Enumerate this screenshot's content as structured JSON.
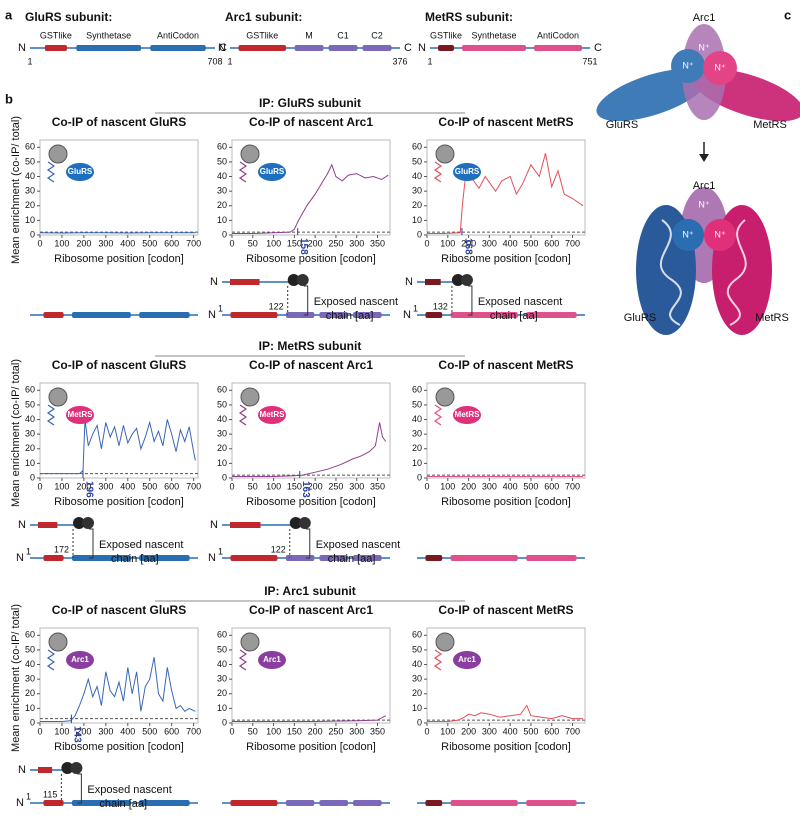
{
  "panel_a": {
    "label": "a",
    "proteins": [
      {
        "name": "GluRS subunit:",
        "n": "N",
        "c": "C",
        "start": "1",
        "end": "708",
        "domains": [
          {
            "label": "GSTlike",
            "color": "#c0282e"
          },
          {
            "label": "Synthetase",
            "color": "#2a6db0"
          },
          {
            "label": "AntiCodon",
            "color": "#2a6db0"
          }
        ]
      },
      {
        "name": "Arc1 subunit:",
        "n": "N",
        "c": "C",
        "start": "1",
        "end": "376",
        "domains": [
          {
            "label": "GSTlike",
            "color": "#c0282e"
          },
          {
            "label": "M",
            "color": "#7b68b8"
          },
          {
            "label": "C1",
            "color": "#7b68b8"
          },
          {
            "label": "C2",
            "color": "#7b68b8"
          }
        ]
      },
      {
        "name": "MetRS subunit:",
        "n": "N",
        "c": "C",
        "start": "1",
        "end": "751",
        "domains": [
          {
            "label": "GSTlike",
            "color": "#7a1a20"
          },
          {
            "label": "Synthetase",
            "color": "#e0508a"
          },
          {
            "label": "AntiCodon",
            "color": "#e0508a"
          }
        ]
      }
    ]
  },
  "panel_b": {
    "label": "b",
    "rows": [
      "IP: GluRS subunit",
      "IP: MetRS  subunit",
      "IP: Arc1 subunit"
    ]
  },
  "panel_c": {
    "label": "c",
    "arc1": "Arc1",
    "glurs": "GluRS",
    "metrs": "MetRS",
    "n": "N⁺"
  },
  "chart_data": [
    {
      "type": "line",
      "title": "Co-IP of nascent GluRS",
      "xlabel": "Ribosome position [codon]",
      "ylabel": "Mean enrichment (co-IP/ total)",
      "bait": "GluRS",
      "bait_color": "#1f6fbf",
      "color": "#3a66b7",
      "reference_line": 2,
      "x": [
        0,
        100,
        200,
        300,
        400,
        500,
        600,
        708
      ],
      "values": [
        1.5,
        1.4,
        1.6,
        1.5,
        1.4,
        1.5,
        1.6,
        1.5
      ],
      "xlim": [
        0,
        720
      ],
      "xticks": [
        0,
        100,
        200,
        300,
        400,
        500,
        600,
        700
      ],
      "ylim": [
        0,
        65
      ],
      "yticks": [
        0,
        10,
        20,
        30,
        40,
        50,
        60
      ]
    },
    {
      "type": "line",
      "title": "Co-IP of nascent Arc1",
      "xlabel": "Ribosome position [codon]",
      "bait": "GluRS",
      "bait_color": "#1f6fbf",
      "color": "#8e3f8e",
      "reference_line": 2,
      "x": [
        0,
        50,
        100,
        140,
        150,
        160,
        180,
        200,
        215,
        230,
        240,
        250,
        265,
        280,
        300,
        320,
        340,
        360,
        376
      ],
      "values": [
        1,
        1,
        1.5,
        2,
        4,
        10,
        20,
        28,
        35,
        42,
        48,
        40,
        37,
        41,
        42,
        39,
        40,
        38,
        41
      ],
      "xlim": [
        0,
        380
      ],
      "xticks": [
        0,
        50,
        100,
        150,
        200,
        250,
        300,
        350
      ],
      "ylim": [
        0,
        65
      ],
      "yticks": [
        0,
        10,
        20,
        30,
        40,
        50,
        60
      ],
      "onset": {
        "value": 158,
        "label": "158"
      },
      "schematic": {
        "n": "N",
        "start": "1",
        "position": "122",
        "caption": [
          "Exposed nascent",
          "chain [aa]"
        ]
      }
    },
    {
      "type": "line",
      "title": "Co-IP of nascent MetRS",
      "xlabel": "Ribosome position [codon]",
      "bait": "GluRS",
      "bait_color": "#1f6fbf",
      "color": "#e0505a",
      "reference_line": 2,
      "x": [
        0,
        80,
        160,
        170,
        185,
        200,
        220,
        250,
        280,
        300,
        330,
        360,
        400,
        430,
        460,
        500,
        540,
        570,
        600,
        630,
        660,
        700,
        751
      ],
      "values": [
        1,
        1,
        1.5,
        20,
        40,
        48,
        38,
        32,
        40,
        36,
        30,
        37,
        40,
        28,
        35,
        48,
        40,
        56,
        33,
        44,
        28,
        25,
        20
      ],
      "xlim": [
        0,
        760
      ],
      "xticks": [
        0,
        100,
        200,
        300,
        400,
        500,
        600,
        700
      ],
      "ylim": [
        0,
        65
      ],
      "yticks": [
        0,
        10,
        20,
        30,
        40,
        50,
        60
      ],
      "onset": {
        "value": 168,
        "label": "168"
      },
      "schematic": {
        "n": "N",
        "start": "1",
        "position": "132",
        "caption": [
          "Exposed nascent",
          "chain [aa]"
        ]
      }
    },
    {
      "type": "line",
      "title": "Co-IP of nascent GluRS",
      "xlabel": "Ribosome position [codon]",
      "ylabel": "Mean enrichment (co-IP/ total)",
      "bait": "MetRS",
      "bait_color": "#e0307a",
      "color": "#3a66b7",
      "reference_line": 3,
      "x": [
        0,
        100,
        180,
        196,
        205,
        220,
        240,
        260,
        280,
        300,
        320,
        340,
        360,
        380,
        400,
        420,
        440,
        460,
        480,
        500,
        520,
        540,
        560,
        580,
        600,
        620,
        640,
        660,
        680,
        700,
        708
      ],
      "values": [
        3,
        3,
        3,
        5,
        40,
        22,
        30,
        36,
        20,
        38,
        28,
        35,
        22,
        36,
        24,
        30,
        34,
        20,
        28,
        38,
        25,
        32,
        22,
        40,
        30,
        18,
        33,
        25,
        35,
        18,
        12
      ],
      "xlim": [
        0,
        720
      ],
      "xticks": [
        0,
        100,
        200,
        300,
        400,
        500,
        600,
        700
      ],
      "ylim": [
        0,
        65
      ],
      "yticks": [
        0,
        10,
        20,
        30,
        40,
        50,
        60
      ],
      "onset": {
        "value": 196,
        "label": "196"
      },
      "schematic": {
        "n": "N",
        "start": "1",
        "position": "172",
        "caption": [
          "Exposed nascent",
          "chain [aa]"
        ]
      }
    },
    {
      "type": "line",
      "title": "Co-IP of nascent Arc1",
      "xlabel": "Ribosome position [codon]",
      "bait": "MetRS",
      "bait_color": "#e0307a",
      "color": "#8e3f8e",
      "reference_line": 2,
      "x": [
        0,
        50,
        100,
        150,
        170,
        200,
        230,
        260,
        290,
        310,
        330,
        345,
        355,
        362,
        370
      ],
      "values": [
        1,
        1,
        1,
        1.5,
        2,
        4,
        6,
        9,
        13,
        15,
        18,
        22,
        38,
        28,
        25
      ],
      "xlim": [
        0,
        380
      ],
      "xticks": [
        0,
        50,
        100,
        150,
        200,
        250,
        300,
        350
      ],
      "ylim": [
        0,
        65
      ],
      "yticks": [
        0,
        10,
        20,
        30,
        40,
        50,
        60
      ],
      "onset": {
        "value": 163,
        "label": "163"
      },
      "schematic": {
        "n": "N",
        "start": "1",
        "position": "122",
        "caption": [
          "Exposed nascent",
          "chain [aa]"
        ]
      }
    },
    {
      "type": "line",
      "title": "Co-IP of nascent MetRS",
      "xlabel": "Ribosome position [codon]",
      "bait": "MetRS",
      "bait_color": "#e0307a",
      "color": "#e0508a",
      "reference_line": 2,
      "x": [
        0,
        200,
        400,
        600,
        751
      ],
      "values": [
        1,
        1,
        1,
        1,
        1
      ],
      "xlim": [
        0,
        760
      ],
      "xticks": [
        0,
        100,
        200,
        300,
        400,
        500,
        600,
        700
      ],
      "ylim": [
        0,
        65
      ],
      "yticks": [
        0,
        10,
        20,
        30,
        40,
        50,
        60
      ]
    },
    {
      "type": "line",
      "title": "Co-IP of nascent GluRS",
      "xlabel": "Ribosome position [codon]",
      "ylabel": "Mean enrichment (co-IP/ total)",
      "bait": "Arc1",
      "bait_color": "#8a3fa0",
      "color": "#3a66b7",
      "reference_line": 3,
      "x": [
        0,
        100,
        140,
        160,
        180,
        200,
        220,
        240,
        260,
        280,
        300,
        320,
        340,
        360,
        380,
        400,
        420,
        440,
        460,
        480,
        500,
        520,
        540,
        560,
        580,
        600,
        620,
        640,
        660,
        680,
        708
      ],
      "values": [
        1,
        1,
        1.5,
        5,
        12,
        20,
        30,
        18,
        25,
        12,
        35,
        22,
        18,
        28,
        15,
        38,
        20,
        35,
        8,
        25,
        30,
        45,
        20,
        15,
        38,
        22,
        10,
        12,
        8,
        10,
        8
      ],
      "xlim": [
        0,
        720
      ],
      "xticks": [
        0,
        100,
        200,
        300,
        400,
        500,
        600,
        700
      ],
      "ylim": [
        0,
        65
      ],
      "yticks": [
        0,
        10,
        20,
        30,
        40,
        50,
        60
      ],
      "onset": {
        "value": 143,
        "label": "143"
      },
      "schematic": {
        "n": "N",
        "start": "1",
        "position": "115",
        "caption": [
          "Exposed nascent",
          "chain [aa]"
        ]
      }
    },
    {
      "type": "line",
      "title": "Co-IP of nascent Arc1",
      "xlabel": "Ribosome position [codon]",
      "bait": "Arc1",
      "bait_color": "#8a3fa0",
      "color": "#8e3f8e",
      "reference_line": 2,
      "x": [
        0,
        100,
        200,
        300,
        350,
        370
      ],
      "values": [
        1,
        1,
        1,
        1.5,
        2,
        5
      ],
      "xlim": [
        0,
        380
      ],
      "xticks": [
        0,
        50,
        100,
        150,
        200,
        250,
        300,
        350
      ],
      "ylim": [
        0,
        65
      ],
      "yticks": [
        0,
        10,
        20,
        30,
        40,
        50,
        60
      ]
    },
    {
      "type": "line",
      "title": "Co-IP of nascent MetRS",
      "xlabel": "Ribosome position [codon]",
      "bait": "Arc1",
      "bait_color": "#8a3fa0",
      "color": "#e0505a",
      "reference_line": 2,
      "x": [
        0,
        100,
        150,
        180,
        200,
        230,
        260,
        300,
        350,
        400,
        450,
        480,
        500,
        550,
        600,
        650,
        700,
        751
      ],
      "values": [
        1,
        1,
        2,
        4,
        6,
        5,
        7,
        6,
        4,
        5,
        6,
        12,
        5,
        4,
        3,
        5,
        3,
        3
      ],
      "xlim": [
        0,
        760
      ],
      "xticks": [
        0,
        100,
        200,
        300,
        400,
        500,
        600,
        700
      ],
      "ylim": [
        0,
        65
      ],
      "yticks": [
        0,
        10,
        20,
        30,
        40,
        50,
        60
      ]
    }
  ]
}
